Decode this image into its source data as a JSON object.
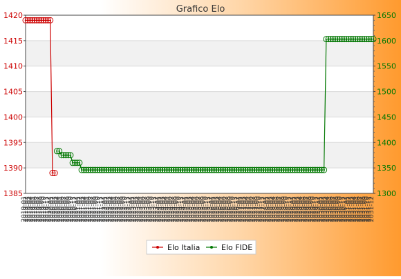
{
  "chart_data": {
    "type": "line",
    "title": "Grafico Elo",
    "x_tick_labels": [
      "2019-01",
      "2019-02",
      "2019-03",
      "2019-04",
      "2019-05",
      "2019-06",
      "2019-07",
      "2019-08",
      "2019-09",
      "2019-10",
      "2019-11",
      "2019-12",
      "2020-01",
      "2020-02",
      "2020-03",
      "2020-04",
      "2020-05",
      "2020-06",
      "2020-07",
      "2020-08",
      "2020-09",
      "2020-10",
      "2020-11",
      "2020-12",
      "2021-01",
      "2021-02",
      "2021-03",
      "2021-04",
      "2021-05",
      "2021-06",
      "2021-07",
      "2021-08",
      "2021-09",
      "2021-10",
      "2021-11",
      "2021-12",
      "2022-01",
      "2022-02",
      "2022-03",
      "2022-04",
      "2022-05",
      "2022-06",
      "2022-07",
      "2022-08",
      "2022-09",
      "2022-10",
      "2022-11",
      "2022-12",
      "2023-01",
      "2023-02",
      "2023-03",
      "2023-04",
      "2023-05",
      "2023-06",
      "2023-07",
      "2023-08",
      "2023-09",
      "2023-10",
      "2023-11",
      "2023-12",
      "2024-01",
      "2024-02",
      "2024-03",
      "2024-04",
      "2024-05",
      "2024-06",
      "2024-07",
      "2024-08",
      "2024-09",
      "2024-10",
      "2024-11",
      "2024-12",
      "2025-01",
      "2025-02",
      "2025-03",
      "2025-04",
      "2025-05",
      "2025-06",
      "2025-07",
      "2025-08",
      "2025-09",
      "2025-10",
      "2025-11",
      "2025-12",
      "2026-01",
      "2026-02",
      "2026-03",
      "2026-04",
      "2026-05",
      "2026-06",
      "2026-07",
      "2026-08",
      "2026-09",
      "2026-10",
      "2026-11",
      "2026-12",
      "2027-01",
      "2027-02",
      "2027-03",
      "2027-04",
      "2027-05",
      "2027-06",
      "2027-07",
      "2027-08",
      "2027-09",
      "2027-10",
      "2027-11",
      "2027-12",
      "2028-01",
      "2028-02",
      "2028-03",
      "2028-04",
      "2028-05",
      "2028-06",
      "2028-07",
      "2028-08",
      "2028-09",
      "2028-10",
      "2028-11",
      "2028-12",
      "2029-01",
      "2029-02",
      "2029-03",
      "2029-04",
      "2029-05",
      "2029-06",
      "2029-07",
      "2029-08",
      "2029-09",
      "2029-10",
      "2029-11",
      "2029-12",
      "2030-01",
      "2030-02",
      "2030-03",
      "2030-04",
      "2030-05",
      "2030-06",
      "2030-07",
      "2030-08",
      "2030-09",
      "2030-10",
      "2030-11",
      "2030-12",
      "2031-01",
      "2031-02",
      "2031-03",
      "2031-04",
      "2031-05",
      "2031-06",
      "2031-07",
      "2031-08",
      "2031-09",
      "2031-10",
      "2031-11",
      "2031-12"
    ],
    "y_left": {
      "ylim": [
        1385,
        1420
      ],
      "ticks": [
        1385,
        1390,
        1395,
        1400,
        1405,
        1410,
        1415,
        1420
      ]
    },
    "y_right": {
      "ylim": [
        1300,
        1650
      ],
      "ticks": [
        1300,
        1350,
        1400,
        1450,
        1500,
        1550,
        1600,
        1650
      ]
    },
    "grid": true,
    "legend_position": "bottom-center",
    "series": [
      {
        "name": "Elo Italia",
        "color": "#cc0000",
        "axis": "left",
        "x_range": [
          0,
          13
        ],
        "values": [
          1419,
          1419,
          1419,
          1419,
          1419,
          1419,
          1419,
          1419,
          1419,
          1419,
          1419,
          1419,
          1389,
          1389
        ]
      },
      {
        "name": "Elo FIDE",
        "color": "#007700",
        "axis": "right",
        "x_range": [
          14,
          155
        ],
        "values": [
          1383,
          1383,
          1375,
          1375,
          1375,
          1375,
          1375,
          1360,
          1360,
          1360,
          1360,
          1346,
          1346,
          1346,
          1346,
          1346,
          1346,
          1346,
          1346,
          1346,
          1346,
          1346,
          1346,
          1346,
          1346,
          1346,
          1346,
          1346,
          1346,
          1346,
          1346,
          1346,
          1346,
          1346,
          1346,
          1346,
          1346,
          1346,
          1346,
          1346,
          1346,
          1346,
          1346,
          1346,
          1346,
          1346,
          1346,
          1346,
          1346,
          1346,
          1346,
          1346,
          1346,
          1346,
          1346,
          1346,
          1346,
          1346,
          1346,
          1346,
          1346,
          1346,
          1346,
          1346,
          1346,
          1346,
          1346,
          1346,
          1346,
          1346,
          1346,
          1346,
          1346,
          1346,
          1346,
          1346,
          1346,
          1346,
          1346,
          1346,
          1346,
          1346,
          1346,
          1346,
          1346,
          1346,
          1346,
          1346,
          1346,
          1346,
          1346,
          1346,
          1346,
          1346,
          1346,
          1346,
          1346,
          1346,
          1346,
          1346,
          1346,
          1346,
          1346,
          1346,
          1346,
          1346,
          1346,
          1346,
          1346,
          1346,
          1346,
          1346,
          1346,
          1346,
          1346,
          1346,
          1346,
          1346,
          1346,
          1346,
          1603,
          1603,
          1603,
          1603,
          1603,
          1603,
          1603,
          1603,
          1603,
          1603,
          1603,
          1603,
          1603,
          1603,
          1603,
          1603,
          1603,
          1603,
          1603,
          1603,
          1603,
          1603
        ]
      }
    ]
  }
}
